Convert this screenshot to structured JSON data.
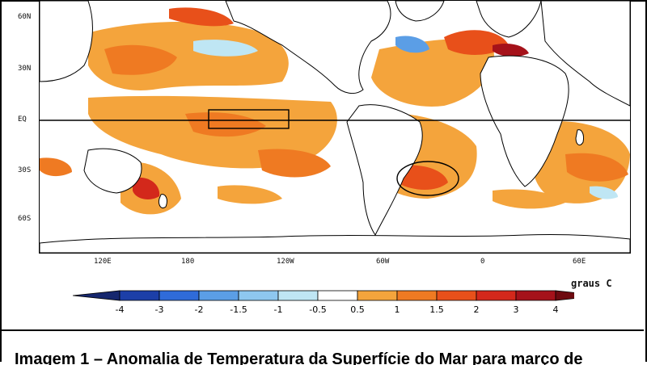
{
  "map": {
    "lat_labels": [
      "60N",
      "30N",
      "EQ",
      "30S",
      "60S"
    ],
    "lon_labels": [
      "120E",
      "180",
      "120W",
      "60W",
      "0",
      "60E"
    ]
  },
  "legend": {
    "units": "graus C",
    "labels": [
      "-4",
      "-3",
      "-2",
      "-1.5",
      "-1",
      "-0.5",
      "0.5",
      "1",
      "1.5",
      "2",
      "3",
      "4"
    ],
    "colors": [
      "#1c3fa8",
      "#2f6bd9",
      "#5b9ee6",
      "#8ec7ef",
      "#bfe6f4",
      "#ffffff",
      "#f4a43c",
      "#ef7a22",
      "#e8501a",
      "#d3281b",
      "#a5121a"
    ]
  },
  "caption": {
    "text": "Imagem 1 – Anomalia de Temperatura da Superfície do Mar para março de"
  }
}
